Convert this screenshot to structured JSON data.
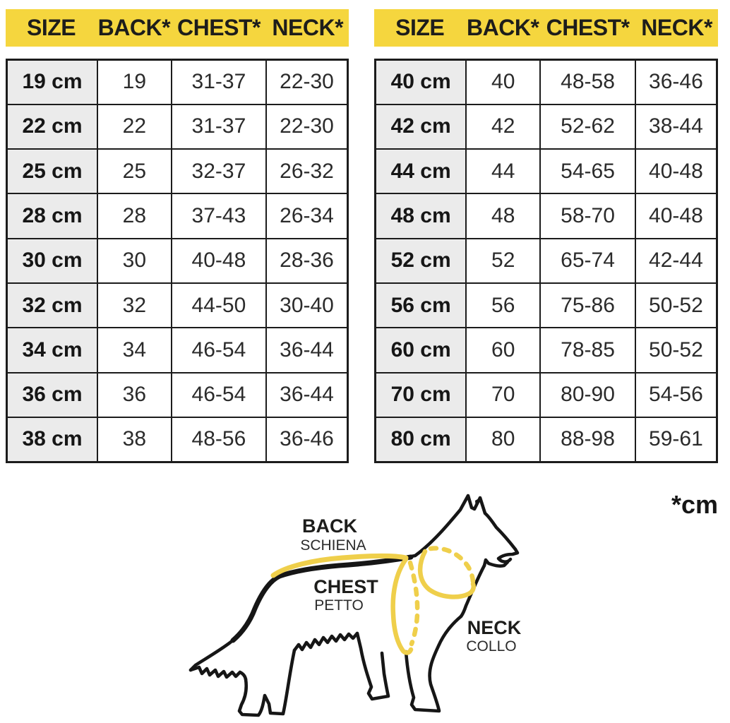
{
  "footnote": "*cm",
  "colors": {
    "header_bg": "#F5D63E",
    "size_col_bg": "#EBEBEB",
    "border": "#1C1C1C",
    "text": "#1E1E1E",
    "measure_line": "#EFCF4B"
  },
  "tables": [
    {
      "name": "small-sizes",
      "columns": [
        "SIZE",
        "BACK*",
        "CHEST*",
        "NECK*"
      ],
      "rows": [
        {
          "size": "19 cm",
          "back": "19",
          "chest": "31-37",
          "neck": "22-30"
        },
        {
          "size": "22 cm",
          "back": "22",
          "chest": "31-37",
          "neck": "22-30"
        },
        {
          "size": "25 cm",
          "back": "25",
          "chest": "32-37",
          "neck": "26-32"
        },
        {
          "size": "28 cm",
          "back": "28",
          "chest": "37-43",
          "neck": "26-34"
        },
        {
          "size": "30 cm",
          "back": "30",
          "chest": "40-48",
          "neck": "28-36"
        },
        {
          "size": "32 cm",
          "back": "32",
          "chest": "44-50",
          "neck": "30-40"
        },
        {
          "size": "34 cm",
          "back": "34",
          "chest": "46-54",
          "neck": "36-44"
        },
        {
          "size": "36 cm",
          "back": "36",
          "chest": "46-54",
          "neck": "36-44"
        },
        {
          "size": "38 cm",
          "back": "38",
          "chest": "48-56",
          "neck": "36-46"
        }
      ]
    },
    {
      "name": "large-sizes",
      "columns": [
        "SIZE",
        "BACK*",
        "CHEST*",
        "NECK*"
      ],
      "rows": [
        {
          "size": "40 cm",
          "back": "40",
          "chest": "48-58",
          "neck": "36-46"
        },
        {
          "size": "42 cm",
          "back": "42",
          "chest": "52-62",
          "neck": "38-44"
        },
        {
          "size": "44 cm",
          "back": "44",
          "chest": "54-65",
          "neck": "40-48"
        },
        {
          "size": "48 cm",
          "back": "48",
          "chest": "58-70",
          "neck": "40-48"
        },
        {
          "size": "52 cm",
          "back": "52",
          "chest": "65-74",
          "neck": "42-44"
        },
        {
          "size": "56 cm",
          "back": "56",
          "chest": "75-86",
          "neck": "50-52"
        },
        {
          "size": "60 cm",
          "back": "60",
          "chest": "78-85",
          "neck": "50-52"
        },
        {
          "size": "70 cm",
          "back": "70",
          "chest": "80-90",
          "neck": "54-56"
        },
        {
          "size": "80 cm",
          "back": "80",
          "chest": "88-98",
          "neck": "59-61"
        }
      ]
    }
  ],
  "diagram": {
    "back": {
      "label": "BACK",
      "sublabel": "SCHIENA"
    },
    "chest": {
      "label": "CHEST",
      "sublabel": "PETTO"
    },
    "neck": {
      "label": "NECK",
      "sublabel": "COLLO"
    }
  }
}
